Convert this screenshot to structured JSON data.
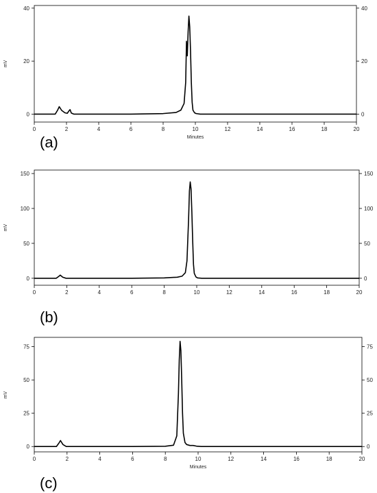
{
  "chart_data": [
    {
      "type": "line",
      "panel_label": "(a)",
      "xlabel": "Minutes",
      "ylabel": "mV",
      "xlim": [
        0,
        20
      ],
      "ylim": [
        -3,
        41
      ],
      "xticks": [
        0,
        2,
        4,
        6,
        8,
        10,
        12,
        14,
        16,
        18,
        20
      ],
      "yticks": [
        0,
        20,
        40
      ],
      "right_yticks": [
        0,
        20,
        40
      ],
      "grid": false,
      "series": [
        {
          "x": [
            0,
            1.3,
            1.45,
            1.55,
            1.7,
            1.9,
            2.05,
            2.15,
            2.22,
            2.3,
            2.45,
            3,
            6,
            8,
            8.8,
            9.1,
            9.3,
            9.4,
            9.45,
            9.5,
            9.55,
            9.6,
            9.65,
            9.7,
            9.75,
            9.8,
            9.85,
            9.95,
            10.05,
            10.3,
            12,
            20
          ],
          "y": [
            0,
            0,
            1.5,
            2.8,
            1.4,
            0.5,
            0.3,
            1.2,
            1.7,
            0.4,
            0,
            0,
            0,
            0.2,
            0.6,
            1.5,
            4,
            12,
            27.5,
            22,
            31,
            37,
            33,
            24,
            12,
            4.5,
            1.5,
            0.5,
            0.2,
            0,
            0,
            0
          ]
        }
      ]
    },
    {
      "type": "line",
      "panel_label": "(b)",
      "xlabel": "",
      "ylabel": "mV",
      "xlim": [
        0,
        20
      ],
      "ylim": [
        -10,
        155
      ],
      "xticks": [
        0,
        2,
        4,
        6,
        8,
        10,
        12,
        14,
        16,
        18,
        20
      ],
      "yticks": [
        0,
        50,
        100,
        150
      ],
      "right_yticks": [
        0,
        50,
        100,
        150
      ],
      "grid": false,
      "series": [
        {
          "x": [
            0,
            1.35,
            1.5,
            1.6,
            1.75,
            1.95,
            3,
            6,
            8,
            8.8,
            9.1,
            9.3,
            9.4,
            9.5,
            9.55,
            9.6,
            9.65,
            9.7,
            9.75,
            9.8,
            9.85,
            9.95,
            10.05,
            10.3,
            12,
            20
          ],
          "y": [
            0,
            0,
            2.5,
            4.5,
            1.5,
            0,
            0,
            0,
            0.5,
            1.5,
            3,
            8,
            25,
            85,
            125,
            138,
            128,
            95,
            55,
            20,
            7,
            2,
            0.5,
            0,
            0,
            0
          ]
        }
      ]
    },
    {
      "type": "line",
      "panel_label": "(c)",
      "xlabel": "Minutes",
      "ylabel": "mV",
      "xlim": [
        0,
        20
      ],
      "ylim": [
        -4,
        82
      ],
      "xticks": [
        0,
        2,
        4,
        6,
        8,
        10,
        12,
        14,
        16,
        18,
        20
      ],
      "yticks": [
        0,
        25,
        50,
        75
      ],
      "right_yticks": [
        0,
        25,
        50,
        75
      ],
      "grid": false,
      "series": [
        {
          "x": [
            0,
            1.35,
            1.5,
            1.6,
            1.75,
            1.95,
            3,
            6,
            8,
            8.5,
            8.7,
            8.8,
            8.85,
            8.9,
            8.95,
            9.0,
            9.05,
            9.1,
            9.2,
            9.3,
            9.5,
            9.7,
            9.9,
            10.2,
            12,
            20
          ],
          "y": [
            0,
            0,
            2.5,
            4.5,
            1.5,
            0,
            0,
            0,
            0.2,
            1,
            8,
            40,
            65,
            79,
            72,
            50,
            25,
            10,
            3,
            1.5,
            0.8,
            0.8,
            0.3,
            0,
            0,
            0
          ]
        }
      ]
    }
  ]
}
